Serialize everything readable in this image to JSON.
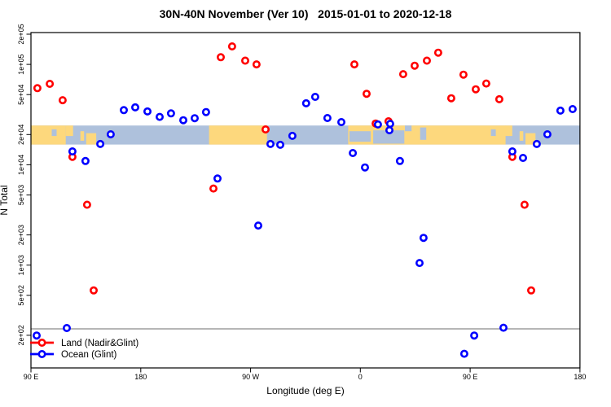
{
  "title": "30N-40N November (Ver 10)   2015-01-01 to 2020-12-18",
  "legend": {
    "items": [
      {
        "label": "Land (Nadir&Glint)",
        "color": "#ff0000"
      },
      {
        "label": "Ocean (Glint)",
        "color": "#0000ff"
      }
    ]
  },
  "chart_data": {
    "type": "scatter",
    "title": "30N-40N November (Ver 10)  2015-01-01 to 2020-12-18",
    "xlabel": "Longitude (deg E)",
    "ylabel": "N Total",
    "x_axis": {
      "note": "longitude increases eastward from 90E and wraps 450 degrees",
      "tick_lons": [
        90,
        180,
        270,
        360,
        450,
        540
      ],
      "labels": [
        "90 E",
        "180",
        "90 W",
        "0",
        "90 E",
        "180"
      ],
      "range": [
        90,
        540
      ]
    },
    "y_axis": {
      "scale": "log",
      "ticks": [
        200000,
        100000,
        50000,
        20000,
        10000,
        5000,
        2000,
        1000,
        500,
        200
      ],
      "labels": [
        "2e+05",
        "1e+05",
        "5e+04",
        "2e+04",
        "1e+04",
        "5e+03",
        "2e+03",
        "1e+03",
        "5e+02",
        "2e+02"
      ],
      "range": [
        95,
        208000
      ],
      "grid": false
    },
    "reference_line": {
      "value": 232,
      "color": "#6e6e6e"
    },
    "map_band": {
      "description": "land/ocean map strip for the 30N-40N latitude band",
      "top_value": 24600,
      "bottom_value": 15900,
      "land_color": "#fdd87d",
      "ocean_color": "#aec1dc",
      "land_segments": [
        {
          "from": 90,
          "to": 118.5,
          "top": 0,
          "bot": 1
        },
        {
          "from": 118.5,
          "to": 124.5,
          "top": 0,
          "bot": 0.55
        },
        {
          "from": 130.5,
          "to": 133.5,
          "top": 0.3,
          "bot": 0.8
        },
        {
          "from": 135.3,
          "to": 143.5,
          "top": 0.4,
          "bot": 1
        },
        {
          "from": 236,
          "to": 283.5,
          "top": 0,
          "bot": 1
        },
        {
          "from": 350,
          "to": 479,
          "top": 0,
          "bot": 1
        },
        {
          "from": 478.5,
          "to": 484.5,
          "top": 0,
          "bot": 0.55
        },
        {
          "from": 490.5,
          "to": 493.5,
          "top": 0.3,
          "bot": 0.8
        },
        {
          "from": 495.3,
          "to": 503.5,
          "top": 0.4,
          "bot": 1
        }
      ],
      "water_patches": [
        {
          "from": 107,
          "to": 111,
          "top": 0.2,
          "bot": 0.55
        },
        {
          "from": 351,
          "to": 368.5,
          "top": 0.3,
          "bot": 0.85
        },
        {
          "from": 370.5,
          "to": 396,
          "top": 0.25,
          "bot": 0.95
        },
        {
          "from": 396.5,
          "to": 402,
          "top": 0,
          "bot": 0.3
        },
        {
          "from": 409,
          "to": 414,
          "top": 0.1,
          "bot": 0.75
        },
        {
          "from": 467,
          "to": 471,
          "top": 0.2,
          "bot": 0.55
        }
      ]
    },
    "point_format": [
      "lon_deg_plot",
      "n_total"
    ],
    "series": [
      {
        "name": "Land (Nadir&Glint)",
        "color": "#ff0000",
        "points": [
          [
            95.3,
            58000
          ],
          [
            105.4,
            64000
          ],
          [
            116.0,
            44000
          ],
          [
            124.0,
            12000
          ],
          [
            136.0,
            4000
          ],
          [
            141.4,
            560
          ],
          [
            239.6,
            5800
          ],
          [
            245.6,
            118000
          ],
          [
            254.9,
            151000
          ],
          [
            265.6,
            109000
          ],
          [
            274.9,
            100000
          ],
          [
            282.3,
            22500
          ],
          [
            355.1,
            100000
          ],
          [
            365.1,
            51000
          ],
          [
            372.5,
            25800
          ],
          [
            383.1,
            27100
          ],
          [
            395.1,
            80000
          ],
          [
            404.5,
            97000
          ],
          [
            414.5,
            109000
          ],
          [
            423.8,
            131000
          ],
          [
            434.5,
            46000
          ],
          [
            444.5,
            79000
          ],
          [
            454.6,
            56500
          ],
          [
            463.2,
            64500
          ],
          [
            473.9,
            45000
          ],
          [
            484.6,
            12000
          ],
          [
            494.6,
            4000
          ],
          [
            500.0,
            560
          ]
        ]
      },
      {
        "name": "Ocean (Glint)",
        "color": "#0000ff",
        "points": [
          [
            94.7,
            199
          ],
          [
            119.4,
            236
          ],
          [
            124.0,
            13600
          ],
          [
            134.7,
            10900
          ],
          [
            146.8,
            16100
          ],
          [
            155.4,
            20100
          ],
          [
            166.1,
            35000
          ],
          [
            175.5,
            37300
          ],
          [
            185.5,
            34000
          ],
          [
            195.5,
            30000
          ],
          [
            204.8,
            32500
          ],
          [
            214.9,
            27800
          ],
          [
            224.2,
            29100
          ],
          [
            233.5,
            33500
          ],
          [
            242.9,
            7300
          ],
          [
            276.3,
            2480
          ],
          [
            286.3,
            16100
          ],
          [
            294.3,
            15800
          ],
          [
            304.3,
            19400
          ],
          [
            315.6,
            41000
          ],
          [
            323.0,
            47500
          ],
          [
            333.0,
            29200
          ],
          [
            344.4,
            26600
          ],
          [
            353.8,
            13100
          ],
          [
            363.8,
            9400
          ],
          [
            374.4,
            25200
          ],
          [
            384.4,
            25600
          ],
          [
            383.8,
            22100
          ],
          [
            392.4,
            10900
          ],
          [
            408.5,
            1050
          ],
          [
            411.8,
            1870
          ],
          [
            445.2,
            131
          ],
          [
            453.3,
            199
          ],
          [
            477.3,
            238
          ],
          [
            484.6,
            13600
          ],
          [
            493.3,
            11700
          ],
          [
            504.6,
            16100
          ],
          [
            513.3,
            20100
          ],
          [
            524.0,
            34600
          ],
          [
            534.0,
            35900
          ]
        ]
      }
    ]
  }
}
